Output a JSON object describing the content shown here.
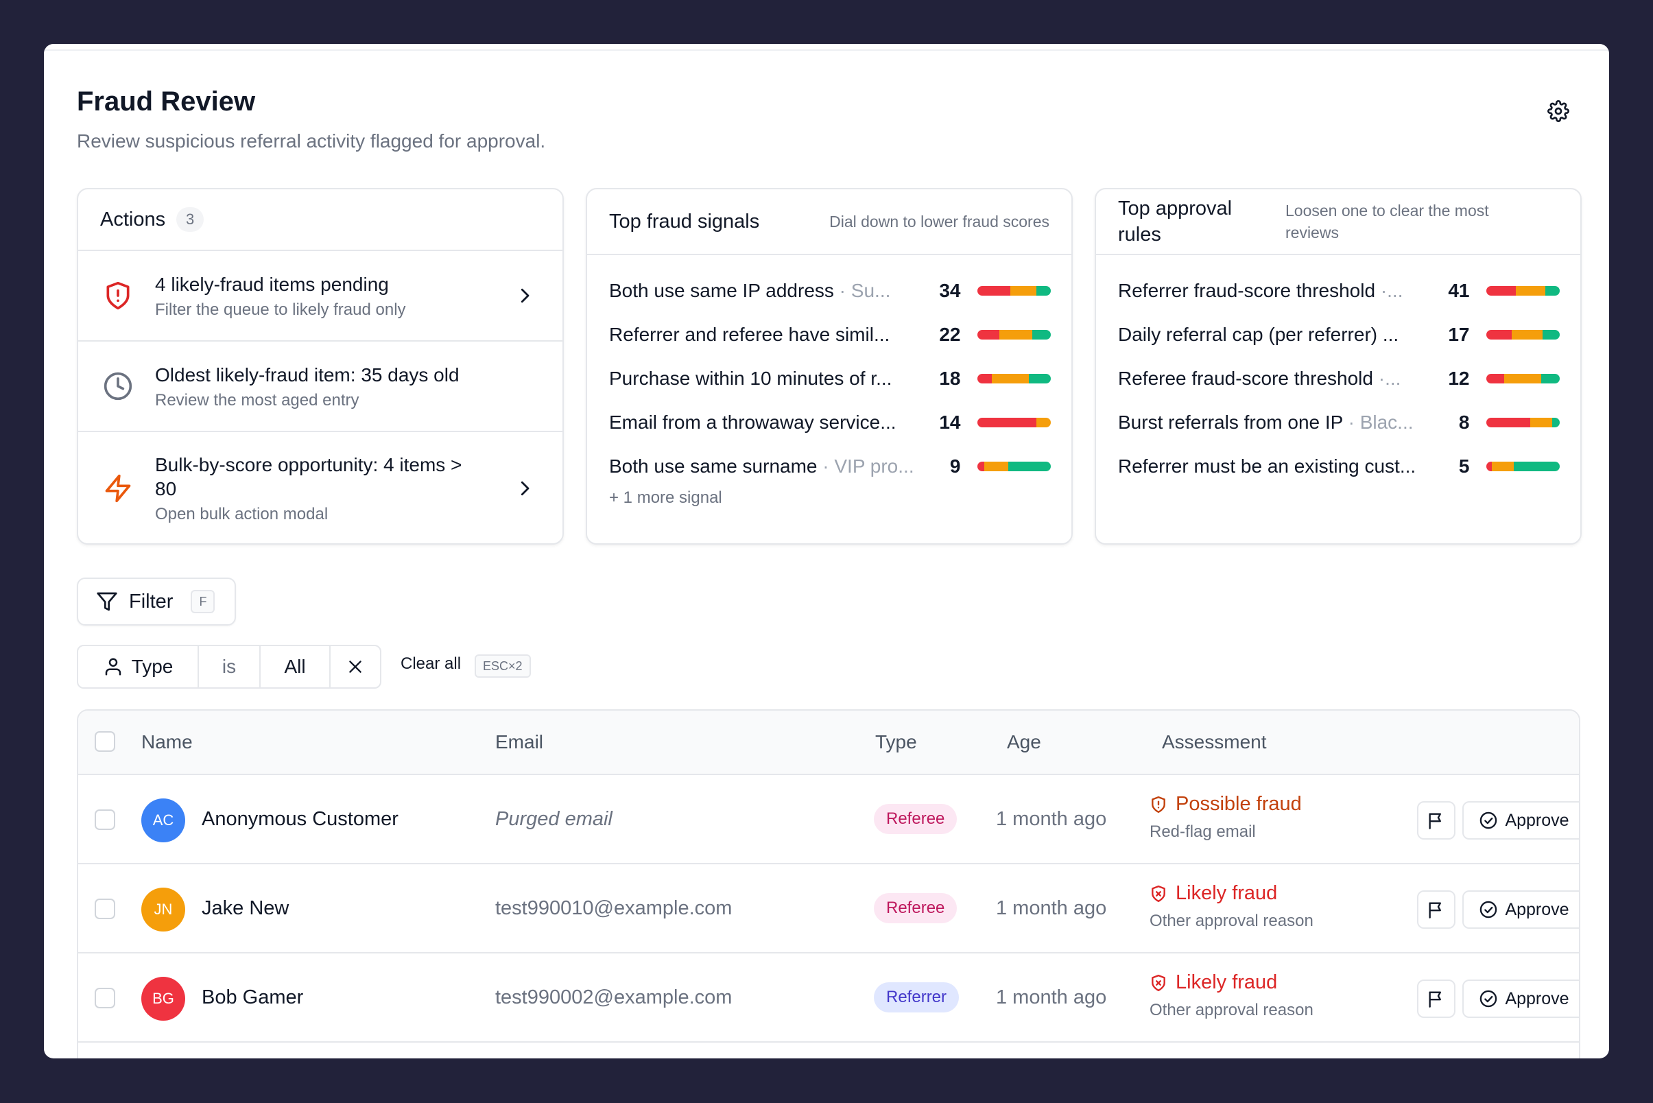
{
  "header": {
    "title": "Fraud Review",
    "subtitle": "Review suspicious referral activity flagged for approval."
  },
  "actions_card": {
    "title": "Actions",
    "count": "3",
    "items": [
      {
        "title": "4 likely-fraud items pending",
        "subtitle": "Filter the queue to likely fraud only",
        "icon": "shield-alert-icon",
        "has_chevron": true
      },
      {
        "title": "Oldest likely-fraud item: 35 days old",
        "subtitle": "Review the most aged entry",
        "icon": "clock-icon",
        "has_chevron": false
      },
      {
        "title": "Bulk-by-score opportunity: 4 items > 80",
        "subtitle": "Open bulk action modal",
        "icon": "lightning-icon",
        "has_chevron": true
      }
    ]
  },
  "signals_card": {
    "title": "Top fraud signals",
    "hint": "Dial down to lower fraud scores",
    "items": [
      {
        "label": "Both use same IP address",
        "muted": " · Su...",
        "count": "34",
        "split": [
          0.45,
          0.35,
          0.2
        ]
      },
      {
        "label": "Referrer and referee have simil...",
        "muted": "",
        "count": "22",
        "split": [
          0.3,
          0.45,
          0.25
        ]
      },
      {
        "label": "Purchase within 10 minutes of r...",
        "muted": "",
        "count": "18",
        "split": [
          0.2,
          0.5,
          0.3
        ]
      },
      {
        "label": "Email from a throwaway service...",
        "muted": "",
        "count": "14",
        "split": [
          0.8,
          0.2,
          0.0
        ]
      },
      {
        "label": "Both use same surname",
        "muted": " · VIP pro...",
        "count": "9",
        "split": [
          0.1,
          0.32,
          0.58
        ]
      }
    ],
    "more": "+ 1 more signal"
  },
  "rules_card": {
    "title": "Top approval rules",
    "hint": "Loosen one to clear the most reviews",
    "items": [
      {
        "label": "Referrer fraud-score threshold",
        "muted": " ·...",
        "count": "41",
        "split": [
          0.4,
          0.4,
          0.2
        ]
      },
      {
        "label": "Daily referral cap (per referrer) ...",
        "muted": "",
        "count": "17",
        "split": [
          0.35,
          0.42,
          0.23
        ]
      },
      {
        "label": "Referee fraud-score threshold",
        "muted": " ·...",
        "count": "12",
        "split": [
          0.25,
          0.5,
          0.25
        ]
      },
      {
        "label": "Burst referrals from one IP",
        "muted": " · Blac...",
        "count": "8",
        "split": [
          0.6,
          0.3,
          0.1
        ]
      },
      {
        "label": "Referrer must be an existing cust...",
        "muted": "",
        "count": "5",
        "split": [
          0.08,
          0.3,
          0.62
        ]
      }
    ]
  },
  "filter": {
    "label": "Filter",
    "shortcut": "F",
    "chip_field": "Type",
    "chip_operator": "is",
    "chip_value": "All",
    "clear_all": "Clear all",
    "clear_shortcut": "ESC×2"
  },
  "table": {
    "columns": {
      "name": "Name",
      "email": "Email",
      "type": "Type",
      "age": "Age",
      "assessment": "Assessment"
    },
    "rows": [
      {
        "initials": "AC",
        "avatar_color": "#3b82f6",
        "name": "Anonymous Customer",
        "email": "Purged email",
        "email_purged": true,
        "type": "Referee",
        "type_kind": "referee",
        "age": "1 month ago",
        "assessment": "Possible fraud",
        "assessment_kind": "possible",
        "reason": "Red-flag email",
        "approve": "Approve"
      },
      {
        "initials": "JN",
        "avatar_color": "#f59e0b",
        "name": "Jake New",
        "email": "test990010@example.com",
        "email_purged": false,
        "type": "Referee",
        "type_kind": "referee",
        "age": "1 month ago",
        "assessment": "Likely fraud",
        "assessment_kind": "likely",
        "reason": "Other approval reason",
        "approve": "Approve"
      },
      {
        "initials": "BG",
        "avatar_color": "#ef3340",
        "name": "Bob Gamer",
        "email": "test990002@example.com",
        "email_purged": false,
        "type": "Referrer",
        "type_kind": "referrer",
        "age": "1 month ago",
        "assessment": "Likely fraud",
        "assessment_kind": "likely",
        "reason": "Other approval reason",
        "approve": "Approve"
      }
    ]
  }
}
